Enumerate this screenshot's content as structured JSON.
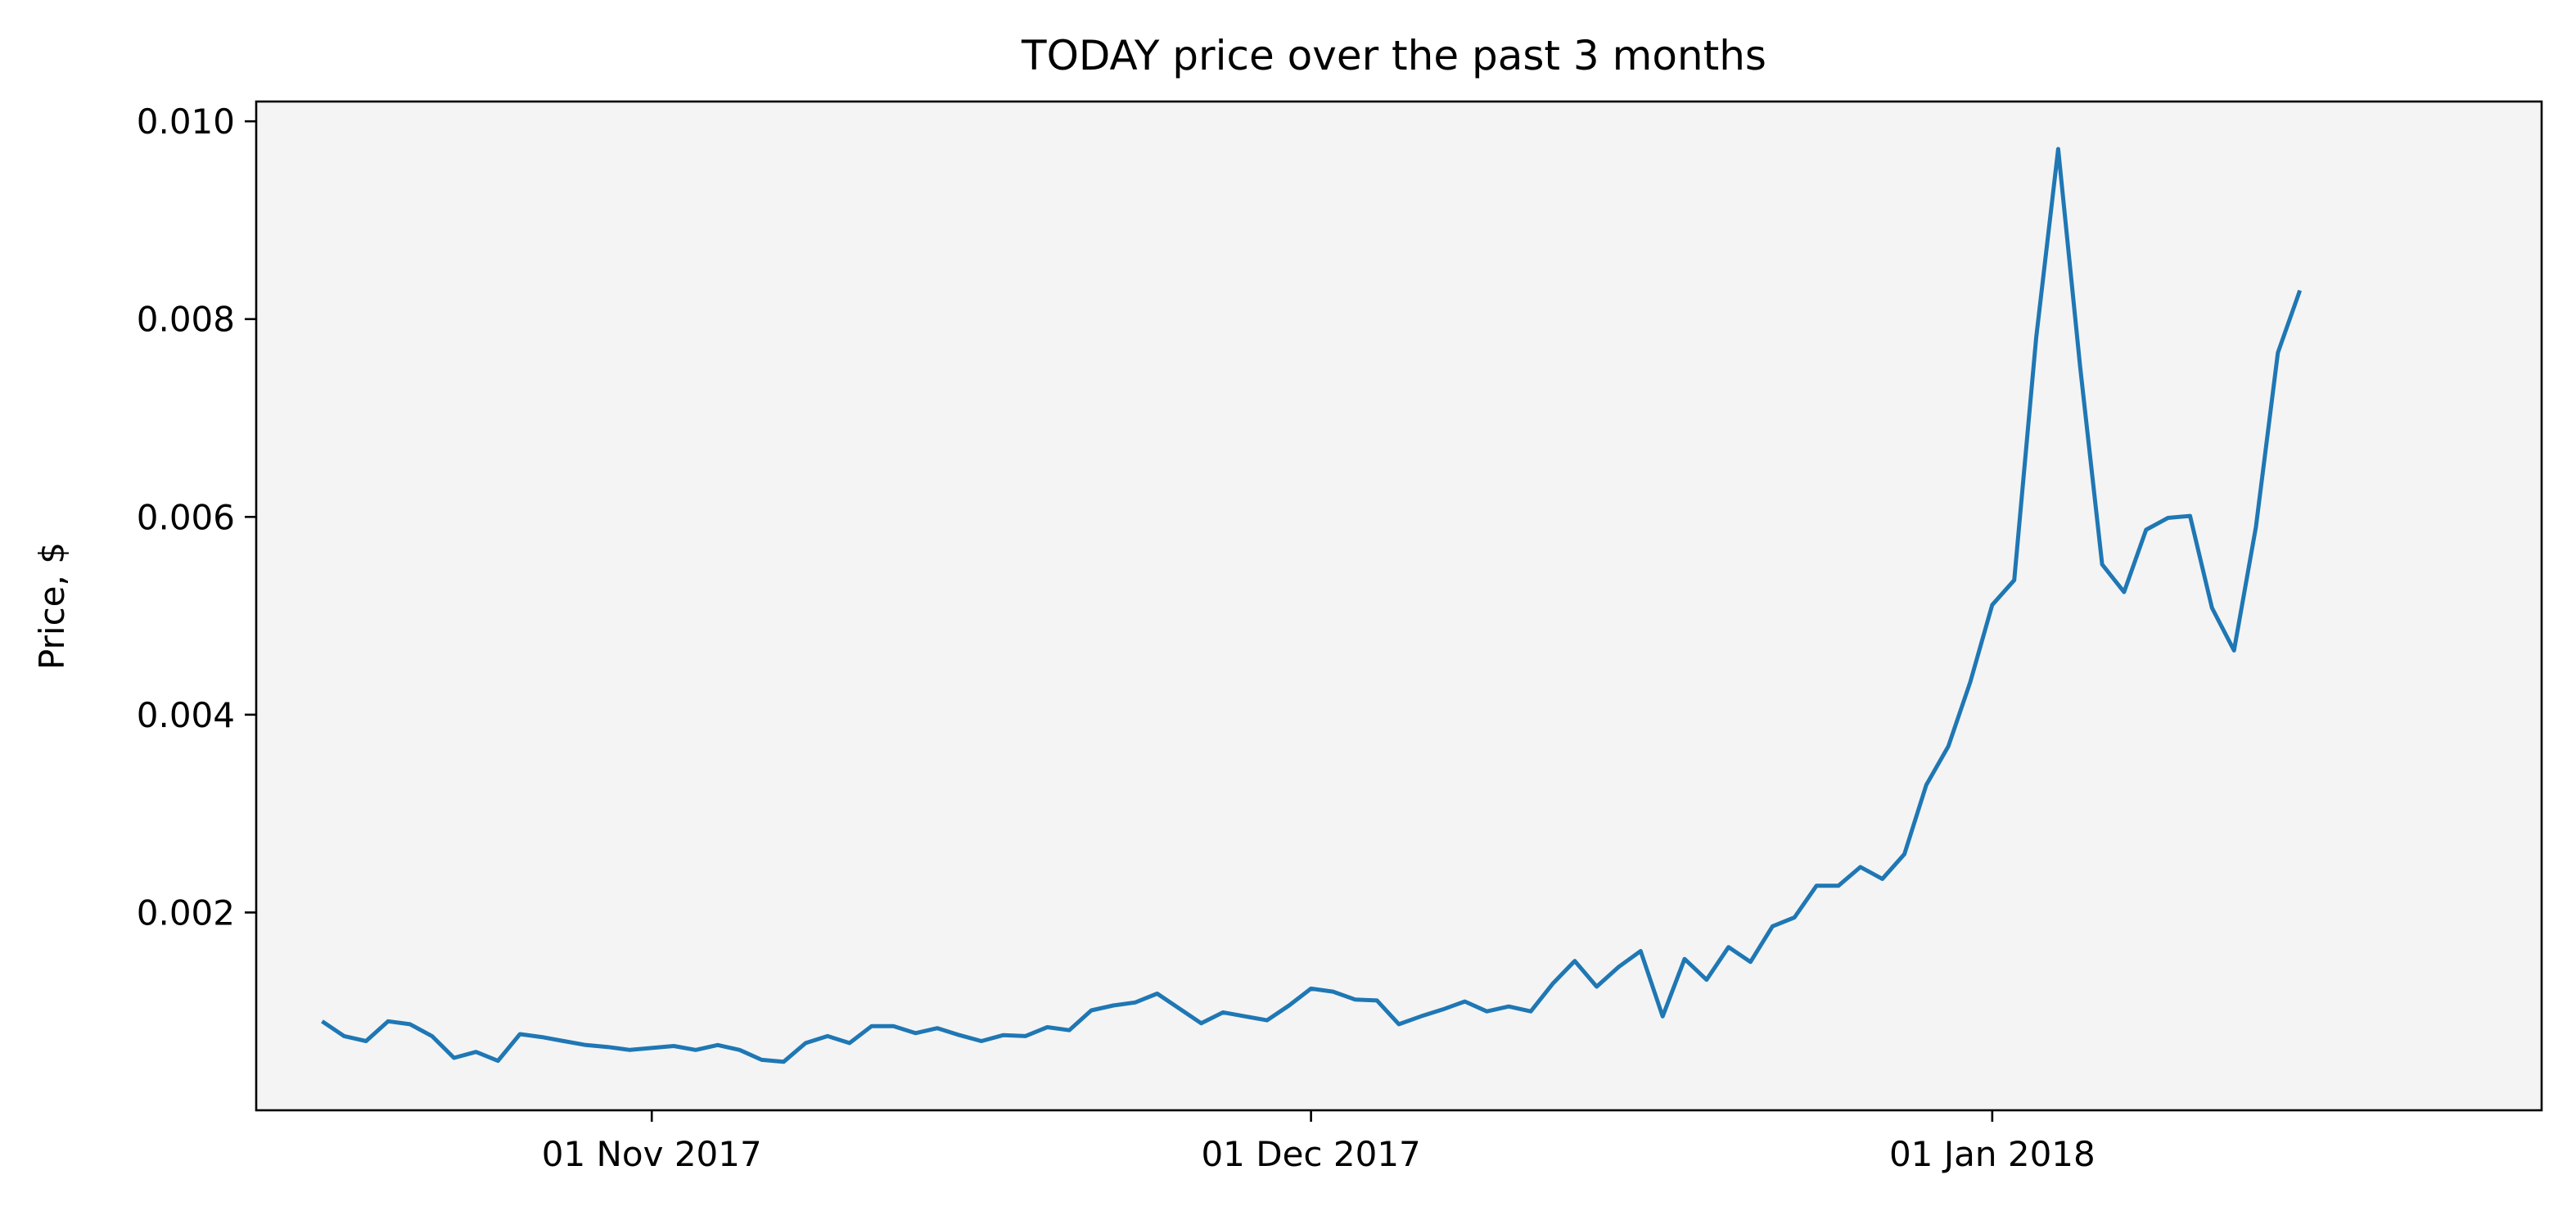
{
  "chart_data": {
    "type": "line",
    "title": "TODAY price over the past 3 months",
    "xlabel": "",
    "ylabel": "Price, $",
    "x_start": "2017-10-17",
    "x_step_days": 1,
    "ylim": [
      0.0,
      0.0102
    ],
    "xlim": [
      "2017-10-14",
      "2018-01-26"
    ],
    "yticks": [
      0.002,
      0.004,
      0.006,
      0.008,
      0.01
    ],
    "ytick_labels": [
      "0.002",
      "0.004",
      "0.006",
      "0.008",
      "0.010"
    ],
    "xticks": [
      {
        "date": "2017-11-01",
        "label": "01 Nov 2017"
      },
      {
        "date": "2017-12-01",
        "label": "01 Dec 2017"
      },
      {
        "date": "2018-01-01",
        "label": "01 Jan 2018"
      }
    ],
    "grid": false,
    "colors": {
      "line": "#1f77b4",
      "plot_background": "#f4f4f4",
      "frame": "#000000"
    },
    "series": [
      {
        "values": [
          0.0009,
          0.00075,
          0.0007,
          0.0009,
          0.00087,
          0.00075,
          0.00053,
          0.00059,
          0.0005,
          0.00077,
          0.00074,
          0.0007,
          0.00066,
          0.00064,
          0.00061,
          0.00063,
          0.00065,
          0.00061,
          0.00066,
          0.00061,
          0.00051,
          0.00049,
          0.00068,
          0.00075,
          0.00068,
          0.00085,
          0.00085,
          0.00078,
          0.00083,
          0.00076,
          0.0007,
          0.00076,
          0.00075,
          0.00084,
          0.00081,
          0.00101,
          0.00106,
          0.00109,
          0.00118,
          0.00103,
          0.00088,
          0.00099,
          0.00095,
          0.00091,
          0.00106,
          0.00123,
          0.0012,
          0.00112,
          0.00111,
          0.00087,
          0.00095,
          0.00102,
          0.0011,
          0.001,
          0.00105,
          0.001,
          0.00128,
          0.00151,
          0.00125,
          0.00145,
          0.00161,
          0.00095,
          0.00153,
          0.00132,
          0.00165,
          0.0015,
          0.00186,
          0.00195,
          0.00227,
          0.00227,
          0.00246,
          0.00234,
          0.00259,
          0.00329,
          0.00368,
          0.00433,
          0.00511,
          0.00536,
          0.00781,
          0.00972,
          0.00752,
          0.00552,
          0.00524,
          0.00587,
          0.00599,
          0.00601,
          0.00508,
          0.00465,
          0.0059,
          0.00766,
          0.00829
        ]
      }
    ]
  }
}
